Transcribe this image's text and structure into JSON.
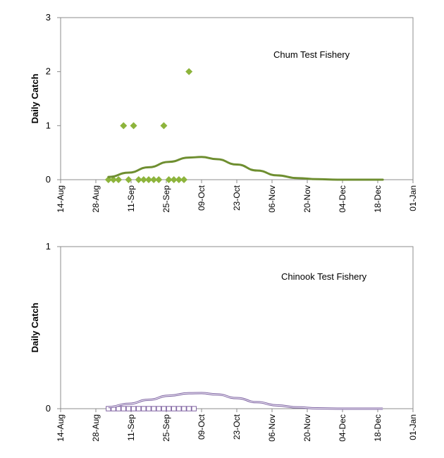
{
  "chart_data": [
    {
      "type": "scatter",
      "annotation": "Chum Test Fishery",
      "ylabel": "Daily Catch",
      "xlabel": "",
      "ylim": [
        0,
        3
      ],
      "yticks": [
        "0",
        "1",
        "2",
        "3"
      ],
      "xlim": [
        "2010-08-14",
        "2011-01-01"
      ],
      "xticks": [
        "14-Aug",
        "28-Aug",
        "11-Sep",
        "25-Sep",
        "09-Oct",
        "23-Oct",
        "06-Nov",
        "20-Nov",
        "04-Dec",
        "18-Dec",
        "01-Jan"
      ],
      "tick_dates": [
        "2010-08-14",
        "2010-08-28",
        "2010-09-11",
        "2010-09-25",
        "2010-10-09",
        "2010-10-23",
        "2010-11-06",
        "2010-11-20",
        "2010-12-04",
        "2010-12-18",
        "2011-01-01"
      ],
      "grid": false,
      "series": [
        {
          "kind": "scatter",
          "marker": "diamond",
          "color": "#8db43c",
          "points": [
            {
              "x": "2010-09-02",
              "y": 0
            },
            {
              "x": "2010-09-04",
              "y": 0
            },
            {
              "x": "2010-09-06",
              "y": 0
            },
            {
              "x": "2010-09-08",
              "y": 1
            },
            {
              "x": "2010-09-10",
              "y": 0
            },
            {
              "x": "2010-09-12",
              "y": 1
            },
            {
              "x": "2010-09-14",
              "y": 0
            },
            {
              "x": "2010-09-16",
              "y": 0
            },
            {
              "x": "2010-09-18",
              "y": 0
            },
            {
              "x": "2010-09-20",
              "y": 0
            },
            {
              "x": "2010-09-22",
              "y": 0
            },
            {
              "x": "2010-09-24",
              "y": 1
            },
            {
              "x": "2010-09-26",
              "y": 0
            },
            {
              "x": "2010-09-28",
              "y": 0
            },
            {
              "x": "2010-09-30",
              "y": 0
            },
            {
              "x": "2010-10-02",
              "y": 0
            },
            {
              "x": "2010-10-04",
              "y": 2
            }
          ]
        },
        {
          "kind": "line",
          "color": "#6e8e30",
          "points": [
            {
              "x": "2010-09-02",
              "y": 0.05
            },
            {
              "x": "2010-09-10",
              "y": 0.13
            },
            {
              "x": "2010-09-18",
              "y": 0.23
            },
            {
              "x": "2010-09-26",
              "y": 0.33
            },
            {
              "x": "2010-10-04",
              "y": 0.41
            },
            {
              "x": "2010-10-09",
              "y": 0.42
            },
            {
              "x": "2010-10-15",
              "y": 0.38
            },
            {
              "x": "2010-10-23",
              "y": 0.28
            },
            {
              "x": "2010-10-31",
              "y": 0.17
            },
            {
              "x": "2010-11-08",
              "y": 0.08
            },
            {
              "x": "2010-11-16",
              "y": 0.03
            },
            {
              "x": "2010-11-24",
              "y": 0.01
            },
            {
              "x": "2010-12-02",
              "y": 0.0
            },
            {
              "x": "2010-12-20",
              "y": 0.0
            }
          ]
        }
      ]
    },
    {
      "type": "scatter",
      "annotation": "Chinook Test Fishery",
      "ylabel": "Daily Catch",
      "xlabel": "",
      "ylim": [
        0,
        1
      ],
      "yticks": [
        "0",
        "1"
      ],
      "xlim": [
        "2010-08-14",
        "2011-01-01"
      ],
      "xticks": [
        "14-Aug",
        "28-Aug",
        "11-Sep",
        "25-Sep",
        "09-Oct",
        "23-Oct",
        "06-Nov",
        "20-Nov",
        "04-Dec",
        "18-Dec",
        "01-Jan"
      ],
      "tick_dates": [
        "2010-08-14",
        "2010-08-28",
        "2010-09-11",
        "2010-09-25",
        "2010-10-09",
        "2010-10-23",
        "2010-11-06",
        "2010-11-20",
        "2010-12-04",
        "2010-12-18",
        "2011-01-01"
      ],
      "grid": false,
      "series": [
        {
          "kind": "scatter",
          "marker": "square",
          "color": "#8064a2",
          "points": [
            {
              "x": "2010-09-02",
              "y": 0
            },
            {
              "x": "2010-09-04",
              "y": 0
            },
            {
              "x": "2010-09-06",
              "y": 0
            },
            {
              "x": "2010-09-08",
              "y": 0
            },
            {
              "x": "2010-09-10",
              "y": 0
            },
            {
              "x": "2010-09-12",
              "y": 0
            },
            {
              "x": "2010-09-14",
              "y": 0
            },
            {
              "x": "2010-09-16",
              "y": 0
            },
            {
              "x": "2010-09-18",
              "y": 0
            },
            {
              "x": "2010-09-20",
              "y": 0
            },
            {
              "x": "2010-09-22",
              "y": 0
            },
            {
              "x": "2010-09-24",
              "y": 0
            },
            {
              "x": "2010-09-26",
              "y": 0
            },
            {
              "x": "2010-09-28",
              "y": 0
            },
            {
              "x": "2010-09-30",
              "y": 0
            },
            {
              "x": "2010-10-02",
              "y": 0
            },
            {
              "x": "2010-10-04",
              "y": 0
            },
            {
              "x": "2010-10-06",
              "y": 0
            }
          ]
        },
        {
          "kind": "line",
          "color": "#7a5ea0",
          "points": [
            {
              "x": "2010-09-02",
              "y": 0.01
            },
            {
              "x": "2010-09-10",
              "y": 0.03
            },
            {
              "x": "2010-09-18",
              "y": 0.055
            },
            {
              "x": "2010-09-26",
              "y": 0.08
            },
            {
              "x": "2010-10-04",
              "y": 0.095
            },
            {
              "x": "2010-10-09",
              "y": 0.096
            },
            {
              "x": "2010-10-15",
              "y": 0.088
            },
            {
              "x": "2010-10-23",
              "y": 0.065
            },
            {
              "x": "2010-10-31",
              "y": 0.04
            },
            {
              "x": "2010-11-08",
              "y": 0.02
            },
            {
              "x": "2010-11-16",
              "y": 0.008
            },
            {
              "x": "2010-11-24",
              "y": 0.002
            },
            {
              "x": "2010-12-02",
              "y": 0.0
            },
            {
              "x": "2010-12-20",
              "y": 0.0
            }
          ]
        }
      ]
    }
  ]
}
